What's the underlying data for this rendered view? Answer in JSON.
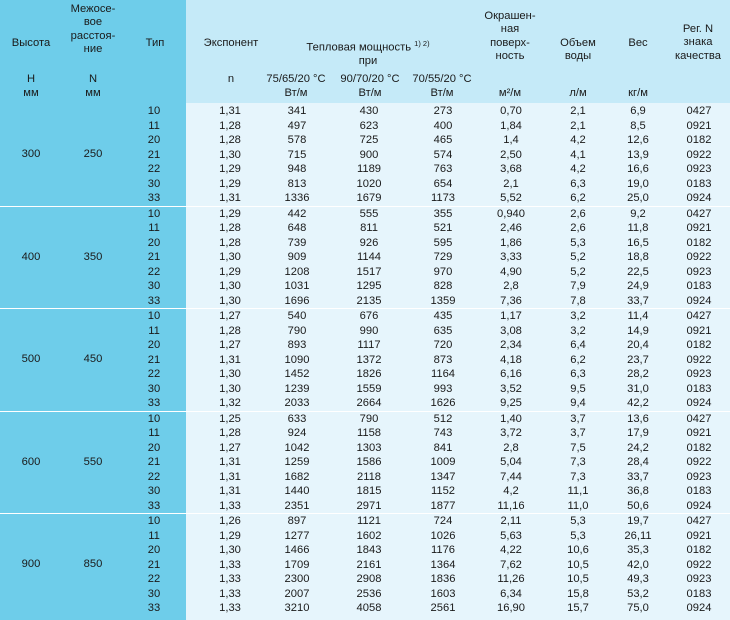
{
  "header": {
    "height_label": "Высота",
    "spacing_label": [
      "Межосе-",
      "вое",
      "расстоя-",
      "ние"
    ],
    "type_label": "Тип",
    "exponent_label": "Экспонент",
    "power_label_line1": "Тепловая мощность",
    "power_sup": "1) 2)",
    "power_label_line2": "при",
    "surface_label": [
      "Окрашен-",
      "ная",
      "поверх-",
      "ность"
    ],
    "volume_label": [
      "Объем",
      "воды"
    ],
    "weight_label": "Вес",
    "reg_label": [
      "Рег. N",
      "знака",
      "качества"
    ],
    "height_sym": "H",
    "height_unit": "мм",
    "spacing_sym": "N",
    "spacing_unit": "мм",
    "exponent_sym": "n",
    "mode1": "75/65/20 °C",
    "mode2": "90/70/20 °C",
    "mode3": "70/55/20 °C",
    "unit_wm1": "Вт/м",
    "unit_wm2": "Вт/м",
    "unit_wm3": "Вт/м",
    "unit_surface": "м²/м",
    "unit_volume": "л/м",
    "unit_weight": "кг/м"
  },
  "groups": [
    {
      "height": "300",
      "spacing": "250",
      "rows": [
        [
          "10",
          "1,31",
          "341",
          "430",
          "273",
          "0,70",
          "2,1",
          "6,9",
          "0427"
        ],
        [
          "11",
          "1,28",
          "497",
          "623",
          "400",
          "1,84",
          "2,1",
          "8,5",
          "0921"
        ],
        [
          "20",
          "1,28",
          "578",
          "725",
          "465",
          "1,4",
          "4,2",
          "12,6",
          "0182"
        ],
        [
          "21",
          "1,30",
          "715",
          "900",
          "574",
          "2,50",
          "4,1",
          "13,9",
          "0922"
        ],
        [
          "22",
          "1,29",
          "948",
          "1189",
          "763",
          "3,68",
          "4,2",
          "16,6",
          "0923"
        ],
        [
          "30",
          "1,29",
          "813",
          "1020",
          "654",
          "2,1",
          "6,3",
          "19,0",
          "0183"
        ],
        [
          "33",
          "1,31",
          "1336",
          "1679",
          "1173",
          "5,52",
          "6,2",
          "25,0",
          "0924"
        ]
      ]
    },
    {
      "height": "400",
      "spacing": "350",
      "rows": [
        [
          "10",
          "1,29",
          "442",
          "555",
          "355",
          "0,940",
          "2,6",
          "9,2",
          "0427"
        ],
        [
          "11",
          "1,28",
          "648",
          "811",
          "521",
          "2,46",
          "2,6",
          "11,8",
          "0921"
        ],
        [
          "20",
          "1,28",
          "739",
          "926",
          "595",
          "1,86",
          "5,3",
          "16,5",
          "0182"
        ],
        [
          "21",
          "1,30",
          "909",
          "1144",
          "729",
          "3,33",
          "5,2",
          "18,8",
          "0922"
        ],
        [
          "22",
          "1,29",
          "1208",
          "1517",
          "970",
          "4,90",
          "5,2",
          "22,5",
          "0923"
        ],
        [
          "30",
          "1,30",
          "1031",
          "1295",
          "828",
          "2,8",
          "7,9",
          "24,9",
          "0183"
        ],
        [
          "33",
          "1,30",
          "1696",
          "2135",
          "1359",
          "7,36",
          "7,8",
          "33,7",
          "0924"
        ]
      ]
    },
    {
      "height": "500",
      "spacing": "450",
      "rows": [
        [
          "10",
          "1,27",
          "540",
          "676",
          "435",
          "1,17",
          "3,2",
          "11,4",
          "0427"
        ],
        [
          "11",
          "1,28",
          "790",
          "990",
          "635",
          "3,08",
          "3,2",
          "14,9",
          "0921"
        ],
        [
          "20",
          "1,27",
          "893",
          "1117",
          "720",
          "2,34",
          "6,4",
          "20,4",
          "0182"
        ],
        [
          "21",
          "1,31",
          "1090",
          "1372",
          "873",
          "4,18",
          "6,2",
          "23,7",
          "0922"
        ],
        [
          "22",
          "1,30",
          "1452",
          "1826",
          "1164",
          "6,16",
          "6,3",
          "28,2",
          "0923"
        ],
        [
          "30",
          "1,30",
          "1239",
          "1559",
          "993",
          "3,52",
          "9,5",
          "31,0",
          "0183"
        ],
        [
          "33",
          "1,32",
          "2033",
          "2664",
          "1626",
          "9,25",
          "9,4",
          "42,2",
          "0924"
        ]
      ]
    },
    {
      "height": "600",
      "spacing": "550",
      "rows": [
        [
          "10",
          "1,25",
          "633",
          "790",
          "512",
          "1,40",
          "3,7",
          "13,6",
          "0427"
        ],
        [
          "11",
          "1,28",
          "924",
          "1158",
          "743",
          "3,72",
          "3,7",
          "17,9",
          "0921"
        ],
        [
          "20",
          "1,27",
          "1042",
          "1303",
          "841",
          "2,8",
          "7,5",
          "24,2",
          "0182"
        ],
        [
          "21",
          "1,31",
          "1259",
          "1586",
          "1009",
          "5,04",
          "7,3",
          "28,4",
          "0922"
        ],
        [
          "22",
          "1,31",
          "1682",
          "2118",
          "1347",
          "7,44",
          "7,3",
          "33,7",
          "0923"
        ],
        [
          "30",
          "1,31",
          "1440",
          "1815",
          "1152",
          "4,2",
          "11,1",
          "36,8",
          "0183"
        ],
        [
          "33",
          "1,33",
          "2351",
          "2971",
          "1877",
          "11,16",
          "11,0",
          "50,6",
          "0924"
        ]
      ]
    },
    {
      "height": "900",
      "spacing": "850",
      "rows": [
        [
          "10",
          "1,26",
          "897",
          "1121",
          "724",
          "2,11",
          "5,3",
          "19,7",
          "0427"
        ],
        [
          "11",
          "1,29",
          "1277",
          "1602",
          "1026",
          "5,63",
          "5,3",
          "26,11",
          "0921"
        ],
        [
          "20",
          "1,30",
          "1466",
          "1843",
          "1176",
          "4,22",
          "10,6",
          "35,3",
          "0182"
        ],
        [
          "21",
          "1,33",
          "1709",
          "2161",
          "1364",
          "7,62",
          "10,5",
          "42,0",
          "0922"
        ],
        [
          "22",
          "1,33",
          "2300",
          "2908",
          "1836",
          "11,26",
          "10,5",
          "49,3",
          "0923"
        ],
        [
          "30",
          "1,33",
          "2007",
          "2536",
          "1603",
          "6,34",
          "15,8",
          "53,2",
          "0183"
        ],
        [
          "33",
          "1,33",
          "3210",
          "4058",
          "2561",
          "16,90",
          "15,7",
          "75,0",
          "0924"
        ]
      ]
    }
  ]
}
